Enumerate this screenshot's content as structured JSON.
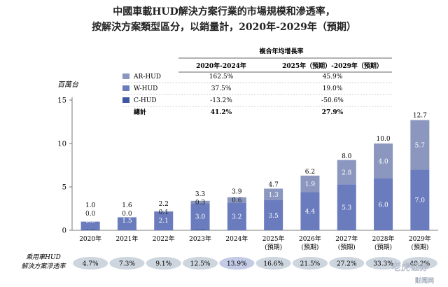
{
  "title_line1": "中國車載HUD解決方案行業的市場規模和滲透率，",
  "title_line2": "按解決方案類型區分，以銷量計，2020年-2029年（預期）",
  "colors": {
    "ar": "#8b97bf",
    "w": "#6a7cbd",
    "c": "#3f57a3",
    "pill": "#cdd5de",
    "pill_highlight": "#c3cbe6",
    "axis": "#555555",
    "table_line": "#333333"
  },
  "table": {
    "header_top": "複合年均增長率",
    "col1": "2020年-2024年",
    "col2": "2025年（預期）-2029年（預期）",
    "rows": [
      {
        "label": "AR-HUD",
        "c1": "162.5%",
        "c2": "45.9%",
        "swatch": "ar"
      },
      {
        "label": "W-HUD",
        "c1": "37.5%",
        "c2": "19.0%",
        "swatch": "w"
      },
      {
        "label": "C-HUD",
        "c1": "-13.2%",
        "c2": "-50.6%",
        "swatch": "c"
      }
    ],
    "total": {
      "label": "總計",
      "c1": "41.2%",
      "c2": "27.9%"
    }
  },
  "penetration": {
    "label_line1": "乘用車HUD",
    "label_line2": "解決方案滲透率",
    "values": [
      "4.7%",
      "7.3%",
      "9.1%",
      "12.5%",
      "13.9%",
      "16.6%",
      "21.5%",
      "27.2%",
      "33.3%",
      "40.2%"
    ],
    "highlight_index": 4
  },
  "chart_data": {
    "type": "bar",
    "stacked": true,
    "ylabel": "百萬台",
    "ylim": [
      0,
      15
    ],
    "yticks": [
      0,
      5,
      10,
      15
    ],
    "categories": [
      [
        "2020年"
      ],
      [
        "2021年"
      ],
      [
        "2022年"
      ],
      [
        "2023年"
      ],
      [
        "2024年"
      ],
      [
        "2025年",
        "(預期)"
      ],
      [
        "2026年",
        "(預期)"
      ],
      [
        "2027年",
        "(預期)"
      ],
      [
        "2028年",
        "(預期)"
      ],
      [
        "2029年",
        "(預期)"
      ]
    ],
    "series": [
      {
        "name": "C-HUD",
        "color_key": "c",
        "values": [
          0.1,
          0.0,
          0.0,
          0.1,
          0.0,
          0.0,
          0.0,
          0.0,
          0.0,
          0.0
        ]
      },
      {
        "name": "W-HUD",
        "color_key": "w",
        "values": [
          0.9,
          1.5,
          2.1,
          3.0,
          3.2,
          3.5,
          4.4,
          5.3,
          6.0,
          7.0
        ]
      },
      {
        "name": "AR-HUD",
        "color_key": "ar",
        "values": [
          0.0,
          0.0,
          0.1,
          0.3,
          0.6,
          1.3,
          1.9,
          2.8,
          4.0,
          5.7
        ]
      }
    ],
    "totals": [
      1.0,
      1.6,
      2.2,
      3.3,
      3.9,
      4.7,
      6.2,
      8.0,
      10.0,
      12.7
    ]
  },
  "watermark": "老虎证券",
  "watermark2": "财闻网"
}
